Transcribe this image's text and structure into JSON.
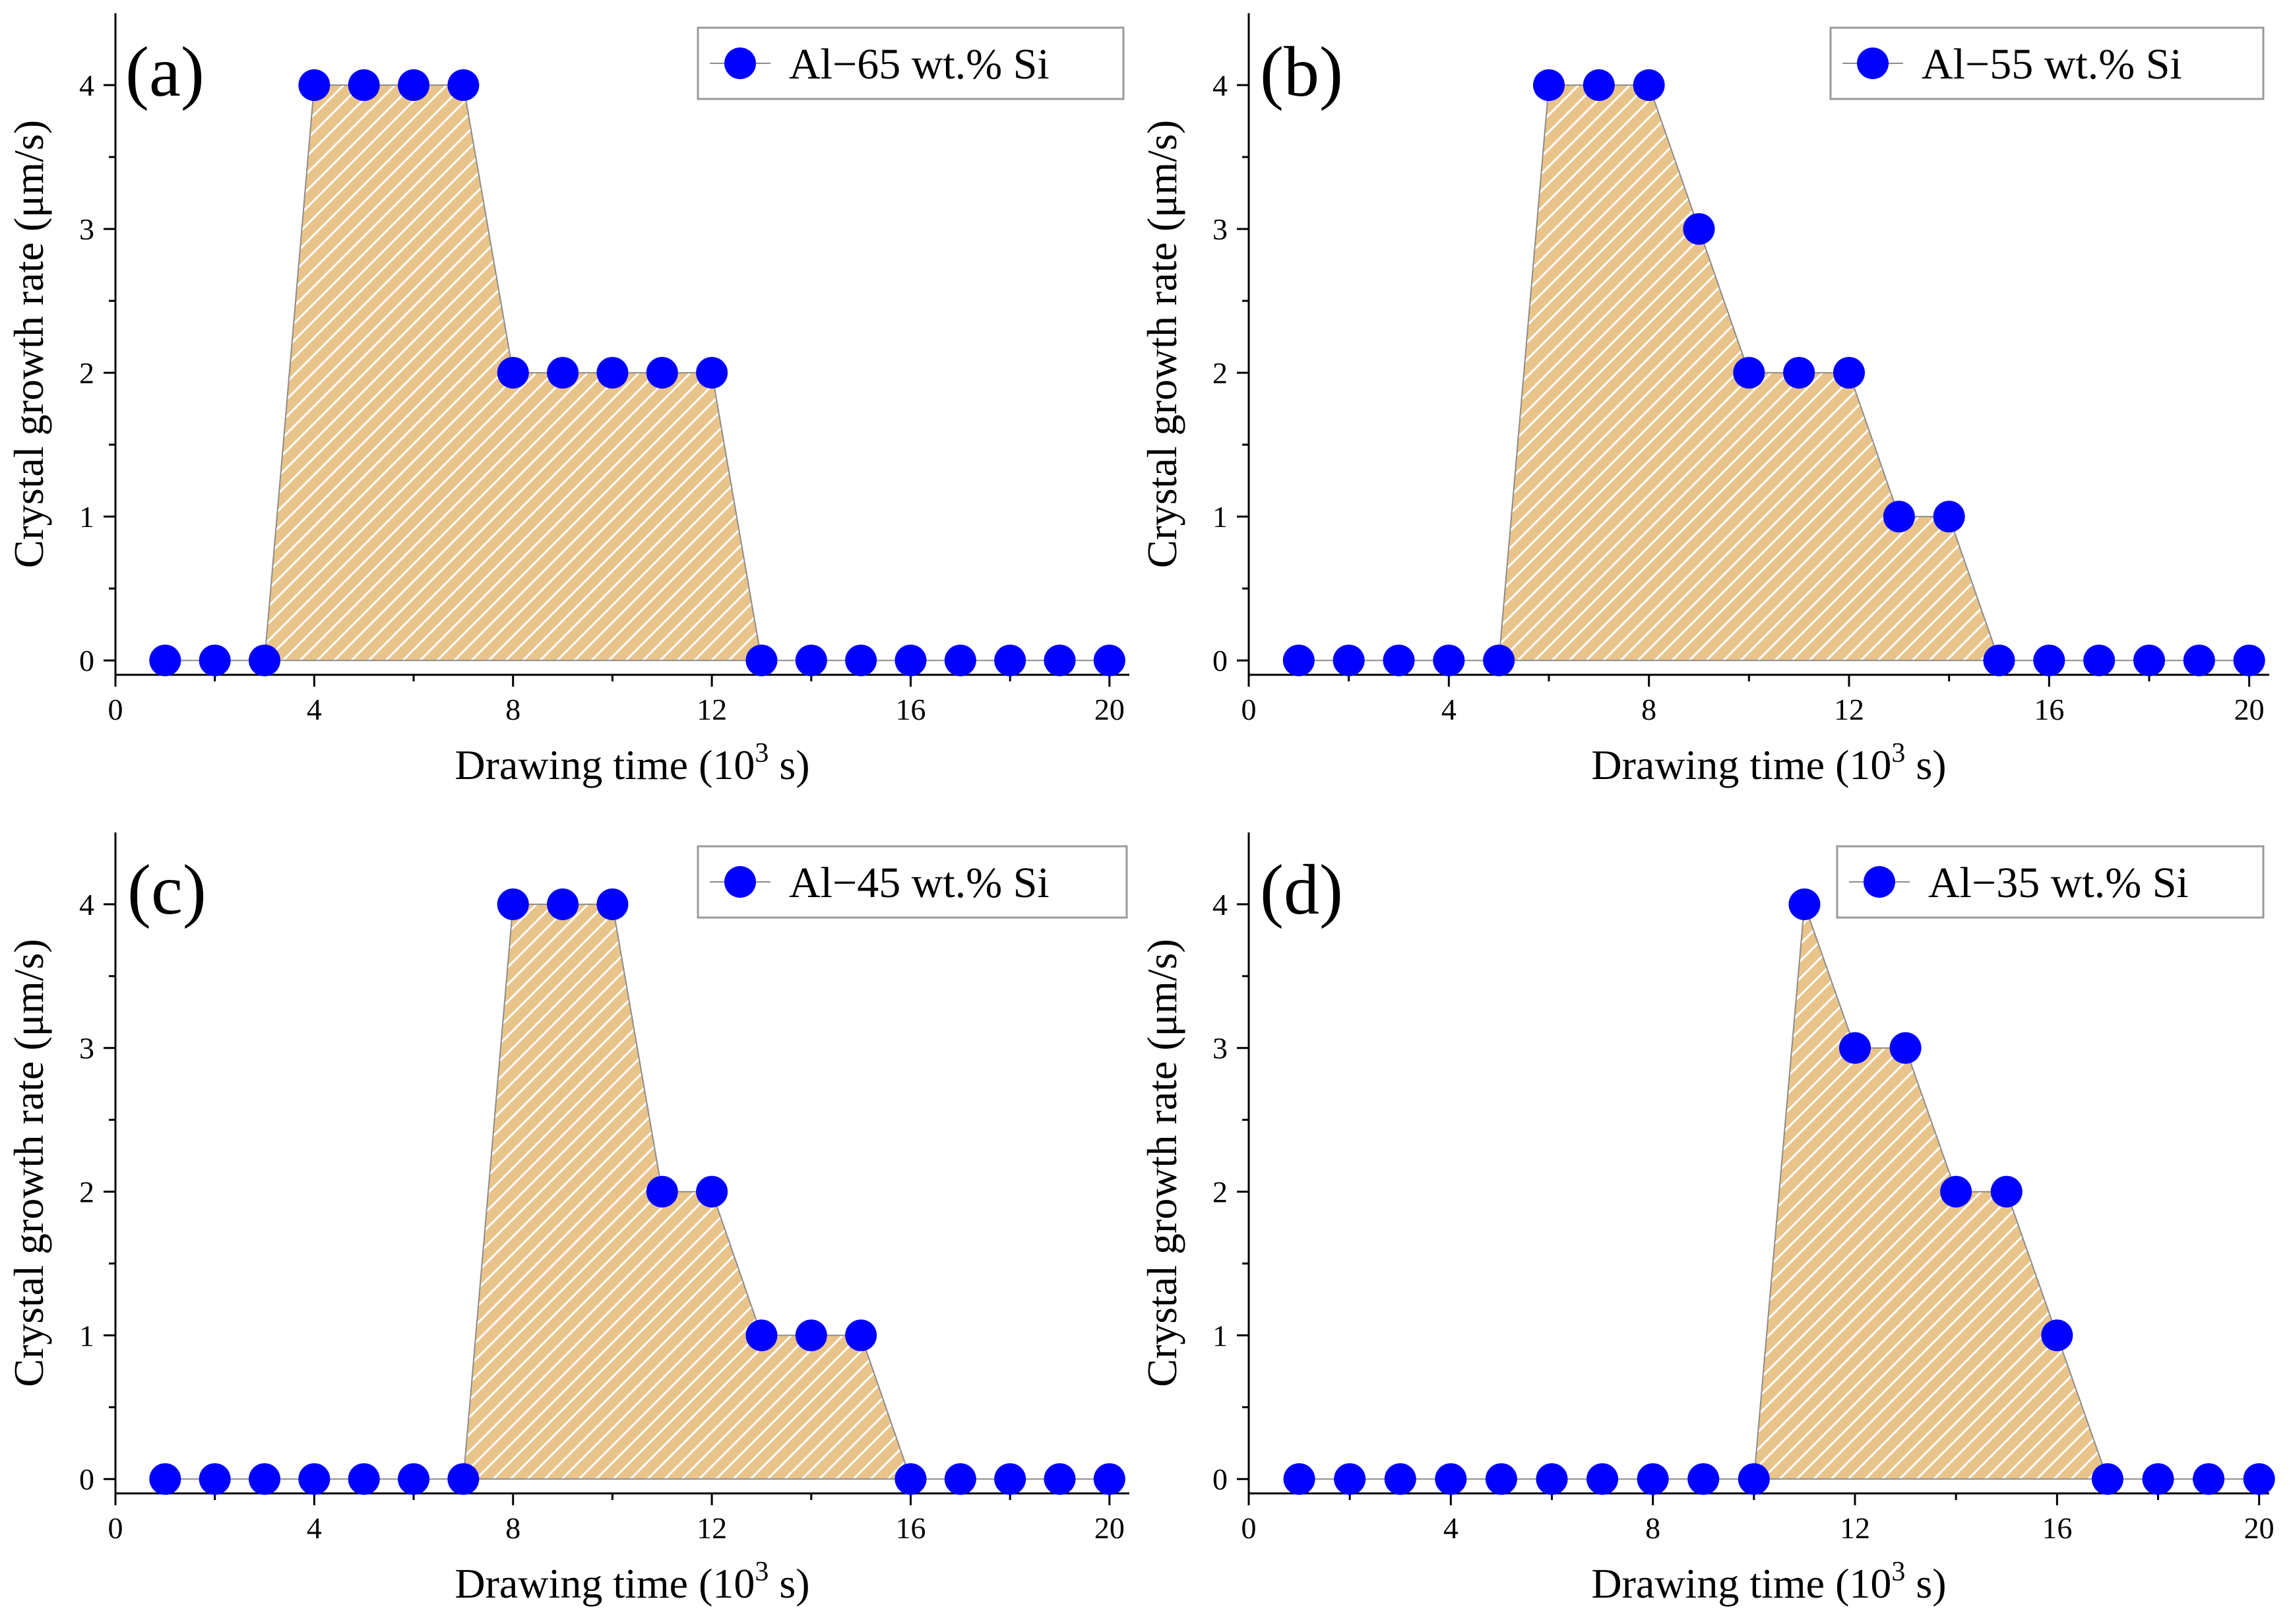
{
  "colors": {
    "marker": "#0000ff",
    "fill": "#e9c48a",
    "hatch": "#ffffff",
    "area_outline": "#8c8c8c",
    "legend_border": "#9a9a9a",
    "axis": "#000000"
  },
  "chart_data": [
    {
      "type": "area",
      "panel_label": "(a)",
      "xlabel": "Drawing time (10",
      "xlabel_sup": "3",
      "xlabel_end": " s)",
      "ylabel": "Crystal growth rate (μm/s)",
      "xlim": [
        0,
        20.4
      ],
      "ylim": [
        -0.1,
        4.5
      ],
      "xticks": [
        "0",
        "4",
        "8",
        "12",
        "16",
        "20"
      ],
      "yticks": [
        "0",
        "1",
        "2",
        "3",
        "4"
      ],
      "legend_position": "top-right",
      "series": [
        {
          "name": "Al−65 wt.% Si",
          "x": [
            1,
            2,
            3,
            4,
            5,
            6,
            7,
            8,
            9,
            10,
            11,
            12,
            13,
            14,
            15,
            16,
            17,
            18,
            19,
            20
          ],
          "y": [
            0,
            0,
            0,
            4,
            4,
            4,
            4,
            2,
            2,
            2,
            2,
            2,
            0,
            0,
            0,
            0,
            0,
            0,
            0,
            0
          ]
        }
      ]
    },
    {
      "type": "area",
      "panel_label": "(b)",
      "xlabel": "Drawing time (10",
      "xlabel_sup": "3",
      "xlabel_end": " s)",
      "ylabel": "Crystal growth rate (μm/s)",
      "xlim": [
        0,
        20.4
      ],
      "ylim": [
        -0.1,
        4.5
      ],
      "xticks": [
        "0",
        "4",
        "8",
        "12",
        "16",
        "20"
      ],
      "yticks": [
        "0",
        "1",
        "2",
        "3",
        "4"
      ],
      "legend_position": "top-right",
      "series": [
        {
          "name": "Al−55 wt.% Si",
          "x": [
            1,
            2,
            3,
            4,
            5,
            6,
            7,
            8,
            9,
            10,
            11,
            12,
            13,
            14,
            15,
            16,
            17,
            18,
            19,
            20
          ],
          "y": [
            0,
            0,
            0,
            0,
            0,
            4,
            4,
            4,
            3,
            2,
            2,
            2,
            1,
            1,
            0,
            0,
            0,
            0,
            0,
            0
          ]
        }
      ]
    },
    {
      "type": "area",
      "panel_label": "(c)",
      "xlabel": "Drawing time (10",
      "xlabel_sup": "3",
      "xlabel_end": " s)",
      "ylabel": "Crystal growth rate (μm/s)",
      "xlim": [
        0,
        20.4
      ],
      "ylim": [
        -0.1,
        4.5
      ],
      "xticks": [
        "0",
        "4",
        "8",
        "12",
        "16",
        "20"
      ],
      "yticks": [
        "0",
        "1",
        "2",
        "3",
        "4"
      ],
      "legend_position": "top-right",
      "series": [
        {
          "name": "Al−45 wt.% Si",
          "x": [
            1,
            2,
            3,
            4,
            5,
            6,
            7,
            8,
            9,
            10,
            11,
            12,
            13,
            14,
            15,
            16,
            17,
            18,
            19,
            20
          ],
          "y": [
            0,
            0,
            0,
            0,
            0,
            0,
            0,
            4,
            4,
            4,
            2,
            2,
            1,
            1,
            1,
            0,
            0,
            0,
            0,
            0
          ]
        }
      ]
    },
    {
      "type": "area",
      "panel_label": "(d)",
      "xlabel": "Drawing time (10",
      "xlabel_sup": "3",
      "xlabel_end": " s)",
      "ylabel": "Crystal growth rate (μm/s)",
      "xlim": [
        0,
        20.2
      ],
      "ylim": [
        -0.1,
        4.5
      ],
      "xticks": [
        "0",
        "4",
        "8",
        "12",
        "16",
        "20"
      ],
      "yticks": [
        "0",
        "1",
        "2",
        "3",
        "4"
      ],
      "legend_position": "top-right",
      "series": [
        {
          "name": "Al−35 wt.% Si",
          "x": [
            1,
            2,
            3,
            4,
            5,
            6,
            7,
            8,
            9,
            10,
            11,
            12,
            13,
            14,
            15,
            16,
            17,
            18,
            19,
            20
          ],
          "y": [
            0,
            0,
            0,
            0,
            0,
            0,
            0,
            0,
            0,
            0,
            4,
            3,
            3,
            2,
            2,
            1,
            0,
            0,
            0,
            0
          ]
        }
      ]
    }
  ]
}
